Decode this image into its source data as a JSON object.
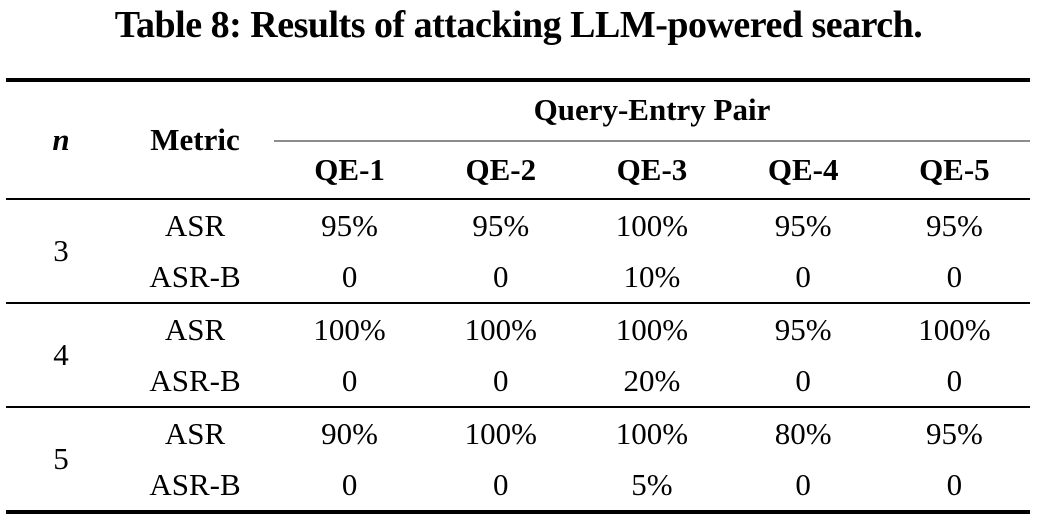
{
  "caption": "Table 8: Results of attacking LLM-powered search.",
  "colors": {
    "background": "#ffffff",
    "text": "#000000",
    "heavy_rule": "#000000",
    "span_rule": "#8c8c8c"
  },
  "table": {
    "header": {
      "n": "n",
      "metric": "Metric",
      "span": "Query-Entry Pair",
      "qe": [
        "QE-1",
        "QE-2",
        "QE-3",
        "QE-4",
        "QE-5"
      ]
    },
    "groups": [
      {
        "n": "3",
        "rows": [
          {
            "metric": "ASR",
            "values": [
              "95%",
              "95%",
              "100%",
              "95%",
              "95%"
            ]
          },
          {
            "metric": "ASR-B",
            "values": [
              "0",
              "0",
              "10%",
              "0",
              "0"
            ]
          }
        ]
      },
      {
        "n": "4",
        "rows": [
          {
            "metric": "ASR",
            "values": [
              "100%",
              "100%",
              "100%",
              "95%",
              "100%"
            ]
          },
          {
            "metric": "ASR-B",
            "values": [
              "0",
              "0",
              "20%",
              "0",
              "0"
            ]
          }
        ]
      },
      {
        "n": "5",
        "rows": [
          {
            "metric": "ASR",
            "values": [
              "90%",
              "100%",
              "100%",
              "80%",
              "95%"
            ]
          },
          {
            "metric": "ASR-B",
            "values": [
              "0",
              "0",
              "5%",
              "0",
              "0"
            ]
          }
        ]
      }
    ]
  }
}
